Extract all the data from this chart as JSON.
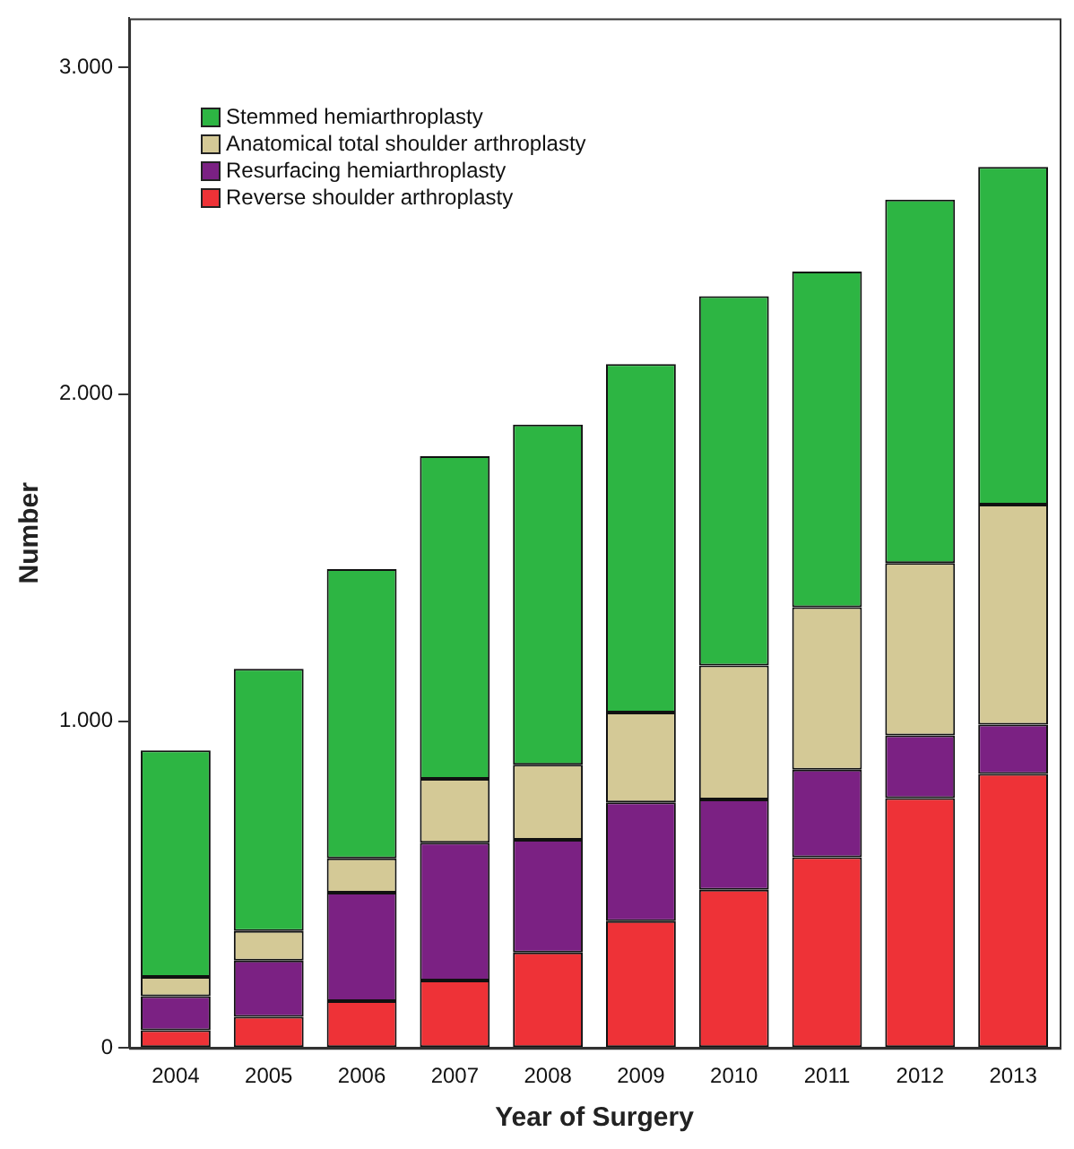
{
  "chart_data": {
    "type": "bar",
    "stacked": true,
    "xlabel": "Year of Surgery",
    "ylabel": "Number",
    "categories": [
      "2004",
      "2005",
      "2006",
      "2007",
      "2008",
      "2009",
      "2010",
      "2011",
      "2012",
      "2013"
    ],
    "series": [
      {
        "name": "Reverse shoulder arthroplasty",
        "color": "#ee3237",
        "values": [
          54,
          95,
          143,
          206,
          292,
          388,
          484,
          583,
          764,
          838
        ]
      },
      {
        "name": "Resurfacing hemiarthroplasty",
        "color": "#7b2183",
        "values": [
          104,
          172,
          332,
          422,
          345,
          363,
          276,
          268,
          192,
          151
        ]
      },
      {
        "name": "Anatomical total shoulder arthroplasty",
        "color": "#d4c996",
        "values": [
          59,
          91,
          105,
          195,
          229,
          275,
          410,
          497,
          527,
          673
        ]
      },
      {
        "name": "Stemmed hemiarthroplasty",
        "color": "#2db543",
        "values": [
          693,
          802,
          885,
          987,
          1041,
          1066,
          1130,
          1027,
          1112,
          1033
        ]
      }
    ],
    "ylim": [
      0,
      3150
    ],
    "yticks": [
      0,
      {
        "value": 1000,
        "label": "1.000"
      },
      {
        "value": 2000,
        "label": "2.000"
      },
      {
        "value": 3000,
        "label": "3.000"
      }
    ],
    "grid": false,
    "legend": "top left"
  }
}
